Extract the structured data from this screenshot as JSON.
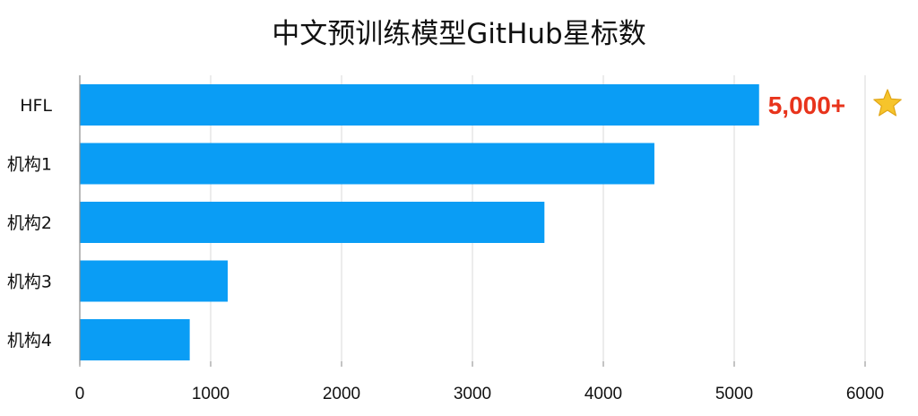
{
  "chart_data": {
    "type": "bar",
    "orientation": "horizontal",
    "title": "中文预训练模型GitHub星标数",
    "xlabel": "",
    "ylabel": "",
    "categories": [
      "HFL",
      "机构1",
      "机构2",
      "机构3",
      "机构4"
    ],
    "values": [
      5190,
      4390,
      3550,
      1130,
      840
    ],
    "xlim": [
      0,
      6000
    ],
    "xticks": [
      0,
      1000,
      2000,
      3000,
      4000,
      5000,
      6000
    ],
    "grid": "vertical",
    "legend": "none",
    "bar_color": "#0a9df5",
    "annotation": {
      "text": "5,000+",
      "category": "HFL",
      "color": "#e8341c",
      "icon": "star-icon",
      "icon_color": "#f6c42b"
    }
  }
}
